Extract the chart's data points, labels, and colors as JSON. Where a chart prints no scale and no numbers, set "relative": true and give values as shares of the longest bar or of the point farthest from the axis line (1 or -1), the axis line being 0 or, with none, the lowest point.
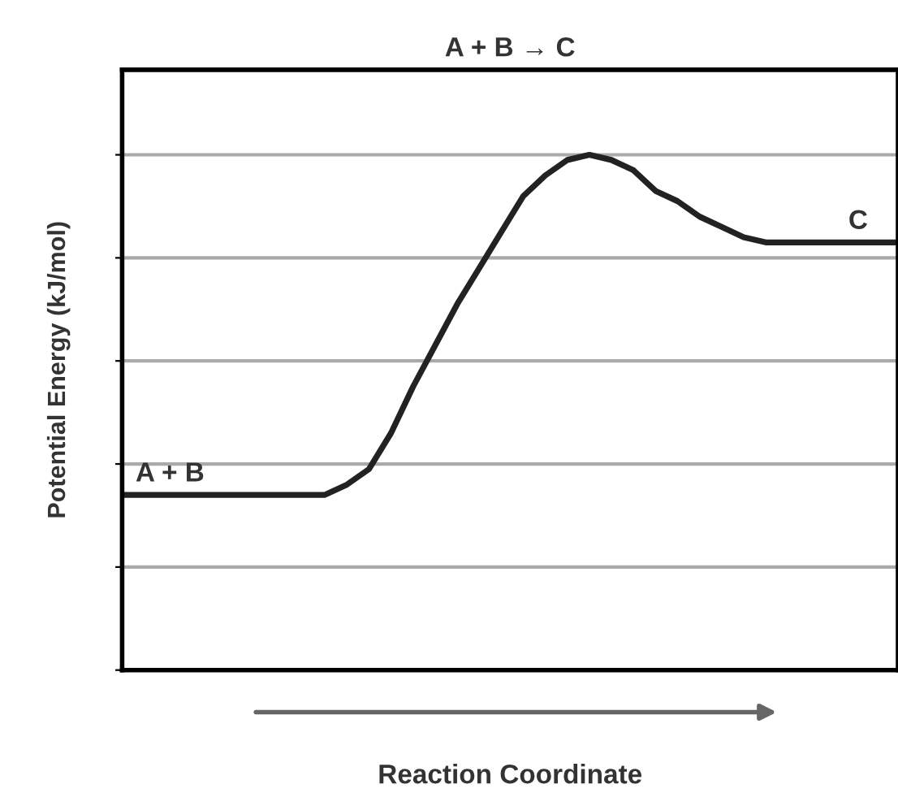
{
  "chart_data": {
    "type": "line",
    "title": "A + B → C",
    "xlabel": "Reaction Coordinate",
    "ylabel": "Potential Energy (kJ/mol)",
    "relative": true,
    "grid": "y",
    "legend": false,
    "marker": "none",
    "line_style": "solid",
    "categories": [
      null,
      null,
      null,
      null,
      null,
      null,
      null,
      null,
      null,
      null,
      null,
      null,
      null,
      null,
      null,
      null,
      null,
      null,
      null,
      null,
      null,
      null,
      null,
      null,
      null,
      null,
      null,
      null,
      null,
      null,
      null,
      null,
      null,
      null,
      null,
      null
    ],
    "series": [
      {
        "color": "#222222",
        "values": [
          0.34,
          0.34,
          0.34,
          0.34,
          0.34,
          0.34,
          0.34,
          0.34,
          0.34,
          0.34,
          0.36,
          0.39,
          0.46,
          0.55,
          0.63,
          0.71,
          0.78,
          0.85,
          0.92,
          0.96,
          0.99,
          1.0,
          0.99,
          0.97,
          0.93,
          0.91,
          0.88,
          0.86,
          0.84,
          0.83,
          0.83,
          0.83,
          0.83,
          0.83,
          0.83,
          0.83
        ]
      }
    ],
    "annotations": [
      "A + B",
      "C"
    ]
  }
}
